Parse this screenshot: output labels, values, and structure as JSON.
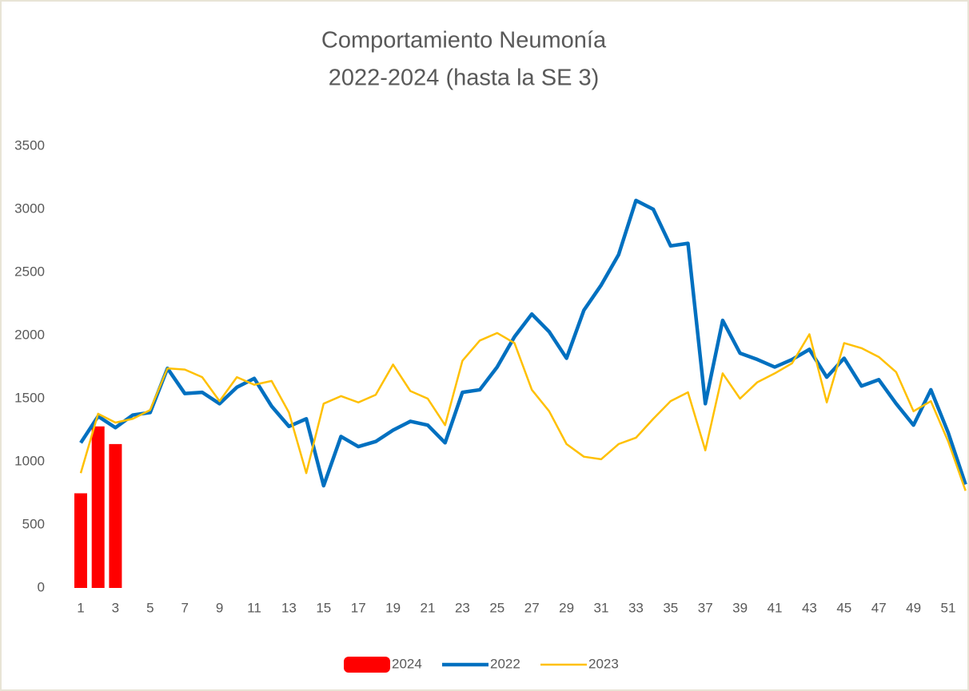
{
  "chart_data": {
    "type": "combo",
    "title": [
      "Comportamiento Neumonía",
      "2022-2024 (hasta la SE 3)"
    ],
    "categories": [
      1,
      null,
      3,
      null,
      5,
      null,
      7,
      null,
      9,
      null,
      11,
      null,
      13,
      null,
      15,
      null,
      17,
      null,
      19,
      null,
      21,
      null,
      23,
      null,
      25,
      null,
      27,
      null,
      29,
      null,
      31,
      null,
      33,
      null,
      35,
      null,
      37,
      null,
      39,
      null,
      41,
      null,
      43,
      null,
      45,
      null,
      47,
      null,
      49,
      null,
      51,
      null
    ],
    "series": [
      {
        "name": "2024",
        "type": "bar",
        "color": "#ff0000",
        "values": [
          750,
          1280,
          1140,
          null,
          null,
          null,
          null,
          null,
          null,
          null,
          null,
          null,
          null,
          null,
          null,
          null,
          null,
          null,
          null,
          null,
          null,
          null,
          null,
          null,
          null,
          null,
          null,
          null,
          null,
          null,
          null,
          null,
          null,
          null,
          null,
          null,
          null,
          null,
          null,
          null,
          null,
          null,
          null,
          null,
          null,
          null,
          null,
          null,
          null,
          null,
          null,
          null
        ]
      },
      {
        "name": "2022",
        "type": "line",
        "color": "#0070c0",
        "values": [
          1150,
          1360,
          1270,
          1370,
          1390,
          1740,
          1540,
          1550,
          1460,
          1590,
          1660,
          1440,
          1280,
          1340,
          810,
          1200,
          1120,
          1160,
          1250,
          1320,
          1290,
          1150,
          1550,
          1570,
          1750,
          1990,
          2170,
          2030,
          1820,
          2200,
          2400,
          2640,
          3070,
          3000,
          2710,
          2730,
          1460,
          2120,
          1860,
          1810,
          1750,
          1810,
          1890,
          1670,
          1820,
          1600,
          1650,
          1460,
          1290,
          1570,
          1230,
          820
        ]
      },
      {
        "name": "2023",
        "type": "line",
        "color": "#ffc000",
        "values": [
          910,
          1380,
          1310,
          1340,
          1410,
          1740,
          1730,
          1670,
          1480,
          1670,
          1610,
          1640,
          1390,
          910,
          1460,
          1520,
          1470,
          1530,
          1770,
          1560,
          1500,
          1290,
          1800,
          1960,
          2020,
          1940,
          1570,
          1400,
          1140,
          1040,
          1020,
          1140,
          1190,
          1340,
          1480,
          1550,
          1090,
          1700,
          1500,
          1630,
          1700,
          1780,
          2010,
          1470,
          1940,
          1900,
          1830,
          1710,
          1400,
          1480,
          1160,
          770
        ]
      }
    ],
    "ylim": [
      0,
      3500
    ],
    "yticks": [
      0,
      500,
      1000,
      1500,
      2000,
      2500,
      3000,
      3500
    ],
    "grid": false,
    "legend": "bottom"
  }
}
